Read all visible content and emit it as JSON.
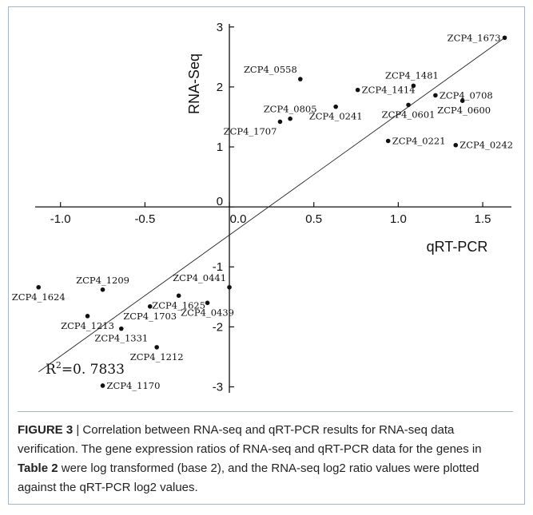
{
  "chart_data": {
    "type": "scatter",
    "xlabel": "qRT-PCR",
    "ylabel": "RNA-Seq",
    "xlim": [
      -1.15,
      1.67
    ],
    "ylim": [
      -3.1,
      3.05
    ],
    "x_ticks": [
      "-1.0",
      "-0.5",
      "0.0",
      "0.5",
      "1.0",
      "1.5"
    ],
    "x_tick_values": [
      -1.0,
      -0.5,
      0.0,
      0.5,
      1.0,
      1.5
    ],
    "y_ticks": [
      "-3",
      "-2",
      "-1",
      "0",
      "1",
      "2",
      "3"
    ],
    "y_tick_values": [
      -3,
      -2,
      -1,
      0,
      1,
      2,
      3
    ],
    "points": [
      {
        "label": "ZCP4_1673",
        "x": 1.63,
        "y": 2.82,
        "label_pos": "left"
      },
      {
        "label": "ZCP4_0558",
        "x": 0.42,
        "y": 2.13,
        "label_pos": "above-left"
      },
      {
        "label": "ZCP4_1414",
        "x": 0.76,
        "y": 1.95,
        "label_pos": "right"
      },
      {
        "label": "ZCP4_1481",
        "x": 1.09,
        "y": 2.02,
        "label_pos": "above-right"
      },
      {
        "label": "ZCP4_0708",
        "x": 1.22,
        "y": 1.86,
        "label_pos": "right"
      },
      {
        "label": "ZCP4_0600",
        "x": 1.38,
        "y": 1.77,
        "label_pos": "below-right"
      },
      {
        "label": "ZCP4_0601",
        "x": 1.06,
        "y": 1.7,
        "label_pos": "below"
      },
      {
        "label": "ZCP4_0241",
        "x": 0.63,
        "y": 1.67,
        "label_pos": "below"
      },
      {
        "label": "ZCP4_0805",
        "x": 0.36,
        "y": 1.47,
        "label_pos": "above"
      },
      {
        "label": "ZCP4_1707",
        "x": 0.3,
        "y": 1.42,
        "label_pos": "below-left"
      },
      {
        "label": "ZCP4_0221",
        "x": 0.94,
        "y": 1.1,
        "label_pos": "right"
      },
      {
        "label": "ZCP4_0242",
        "x": 1.34,
        "y": 1.03,
        "label_pos": "right"
      },
      {
        "label": "ZCP4_1209",
        "x": -0.75,
        "y": -1.38,
        "label_pos": "above"
      },
      {
        "label": "ZCP4_1624",
        "x": -1.13,
        "y": -1.34,
        "label_pos": "below"
      },
      {
        "label": "ZCP4_1213",
        "x": -0.84,
        "y": -1.82,
        "label_pos": "below"
      },
      {
        "label": "ZCP4_0441",
        "x": 0.0,
        "y": -1.34,
        "label_pos": "above-left"
      },
      {
        "label": "ZCP4_1625",
        "x": -0.3,
        "y": -1.48,
        "label_pos": "below"
      },
      {
        "label": "ZCP4_1703",
        "x": -0.47,
        "y": -1.66,
        "label_pos": "below"
      },
      {
        "label": "ZCP4_0439",
        "x": -0.13,
        "y": -1.6,
        "label_pos": "below"
      },
      {
        "label": "ZCP4_1331",
        "x": -0.64,
        "y": -2.03,
        "label_pos": "below"
      },
      {
        "label": "ZCP4_1212",
        "x": -0.43,
        "y": -2.34,
        "label_pos": "below"
      },
      {
        "label": "ZCP4_1170",
        "x": -0.75,
        "y": -2.98,
        "label_pos": "right"
      }
    ],
    "fit_line": {
      "x": [
        -1.13,
        1.63
      ],
      "y": [
        -2.75,
        2.82
      ]
    },
    "annotation": {
      "base": "R",
      "sup": "2",
      "rest": "=0. 7833"
    }
  },
  "caption": {
    "label": "FIGURE 3",
    "sep": " | ",
    "text1": "Correlation between RNA-seq and qRT-PCR results for RNA-seq data verification. The gene expression ratios of RNA-seq and qRT-PCR data for the genes in ",
    "ref": "Table 2",
    "text2": " were log transformed (base 2), and the RNA-seq log2 ratio values were plotted against the qRT-PCR log2 values."
  }
}
